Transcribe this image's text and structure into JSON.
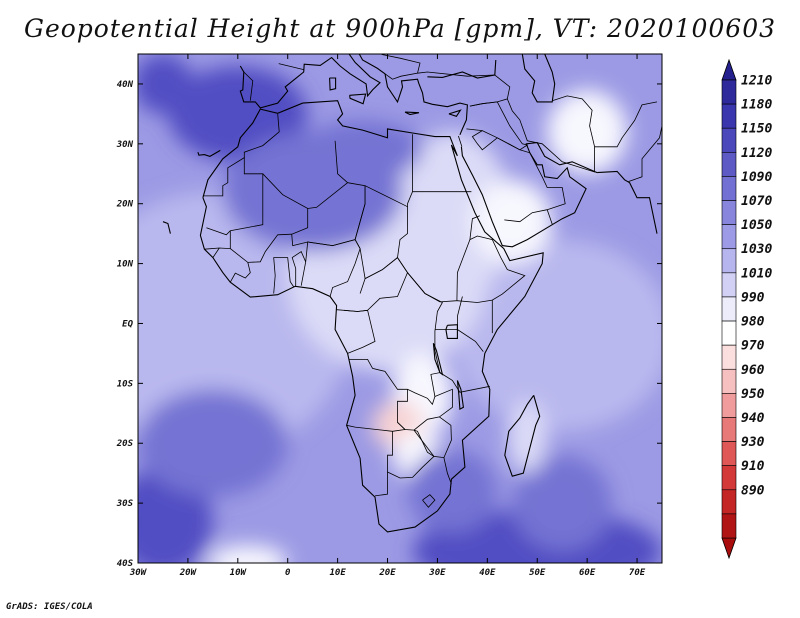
{
  "title": "Geopotential Height at 900hPa [gpm], VT: 2020100603",
  "credit": "GrADS: IGES/COLA",
  "map": {
    "region": "Africa",
    "projection": "lat-lon",
    "lon_range": [
      -30,
      75
    ],
    "lat_range": [
      -40,
      45
    ],
    "lon_ticks": [
      "30W",
      "20W",
      "10W",
      "0",
      "10E",
      "20E",
      "30E",
      "40E",
      "50E",
      "60E",
      "70E"
    ],
    "lat_ticks": [
      "40N",
      "30N",
      "20N",
      "10N",
      "EQ",
      "10S",
      "20S",
      "30S",
      "40S"
    ],
    "lon_tick_values": [
      -30,
      -20,
      -10,
      0,
      10,
      20,
      30,
      40,
      50,
      60,
      70
    ],
    "lat_tick_values": [
      40,
      30,
      20,
      10,
      0,
      -10,
      -20,
      -30,
      -40
    ]
  },
  "colorbar": {
    "levels": [
      "1210",
      "1180",
      "1150",
      "1120",
      "1090",
      "1070",
      "1050",
      "1030",
      "1010",
      "990",
      "980",
      "970",
      "960",
      "950",
      "940",
      "930",
      "910",
      "890"
    ],
    "colors": [
      "#2e2a9c",
      "#3a36ad",
      "#4b48bb",
      "#5d5ac6",
      "#7270d2",
      "#8785dc",
      "#9d9be5",
      "#b6b5ee",
      "#d2d1f5",
      "#ececfb",
      "#ffffff",
      "#fbdede",
      "#f6c0c0",
      "#f09c9c",
      "#e87979",
      "#df5757",
      "#d33939",
      "#c42525",
      "#b01414"
    ],
    "top_arrow_color": "#24208d",
    "bottom_arrow_color": "#a80c0c"
  },
  "field_colors": {
    "ocean_low": "#b9b8ee",
    "ocean_mid": "#9c9ae4",
    "ocean_high": "#7573d3",
    "deep_high": "#514ec3",
    "land_light": "#dcdbf7",
    "land_white": "#f7f7fe",
    "low_pink": "#f8d2d2"
  }
}
